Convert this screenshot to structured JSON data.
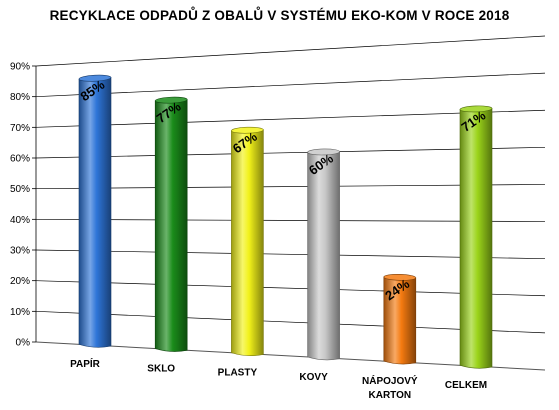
{
  "chart_data": {
    "type": "bar",
    "title": "RECYKLACE ODPADŮ Z OBALŮ V SYSTÉMU EKO-KOM V ROCE 2018",
    "xlabel": "",
    "ylabel": "",
    "ylim": [
      0,
      90
    ],
    "yticks": [
      "0%",
      "10%",
      "20%",
      "30%",
      "40%",
      "50%",
      "60%",
      "70%",
      "80%",
      "90%"
    ],
    "grid": true,
    "categories": [
      [
        "PAPÍR"
      ],
      [
        "SKLO"
      ],
      [
        "PLASTY"
      ],
      [
        "KOVY"
      ],
      [
        "NÁPOJOVÝ",
        "KARTON"
      ],
      [
        "CELKEM"
      ]
    ],
    "values": [
      85,
      77,
      67,
      60,
      24,
      71
    ],
    "data_labels": [
      "85%",
      "77%",
      "67%",
      "60%",
      "24%",
      "71%"
    ],
    "colors": [
      "#2e75d8",
      "#1a8c1a",
      "#f2f21a",
      "#c8c8c8",
      "#f47a10",
      "#9bd41a"
    ]
  }
}
